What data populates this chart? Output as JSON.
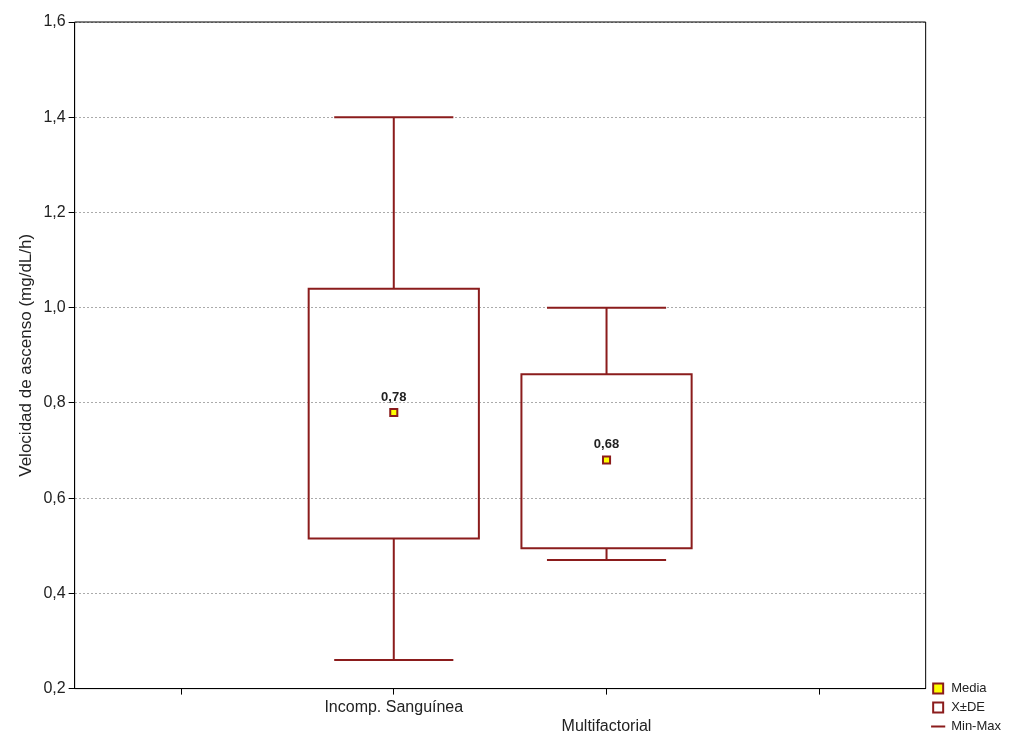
{
  "chart_data": {
    "type": "box",
    "ylabel": "Velocidad de ascenso (mg/dL/h)",
    "categories": [
      "Incomp. Sanguínea",
      "Multifactorial"
    ],
    "series": [
      {
        "type": "scatter",
        "name": "Media",
        "color": "#ffff00",
        "x": [
          "Incomp. Sanguínea",
          "Multifactorial"
        ],
        "values": [
          0.78,
          0.68
        ],
        "value_labels": [
          "0,78",
          "0,68"
        ]
      },
      {
        "name": "X±DE",
        "color": "#8b1c1c",
        "boxes": [
          {
            "low": 0.26,
            "q1": 0.515,
            "median": null,
            "q3": 1.04,
            "high": 1.4
          },
          {
            "low": 0.47,
            "q1": 0.495,
            "median": null,
            "q3": 0.86,
            "high": 1.0
          }
        ]
      }
    ],
    "ylim": [
      0.2,
      1.6
    ],
    "yticks": [
      {
        "value": 0.2,
        "label": "0,2"
      },
      {
        "value": 0.4,
        "label": "0,4"
      },
      {
        "value": 0.6,
        "label": "0,6"
      },
      {
        "value": 0.8,
        "label": "0,8"
      },
      {
        "value": 1.0,
        "label": "1,0"
      },
      {
        "value": 1.2,
        "label": "1,2"
      },
      {
        "value": 1.4,
        "label": "1,4"
      },
      {
        "value": 1.6,
        "label": "1,6"
      }
    ],
    "grid": "y",
    "marker": "square",
    "legend": "bottom right",
    "annotations": [
      "Min-Max"
    ]
  }
}
